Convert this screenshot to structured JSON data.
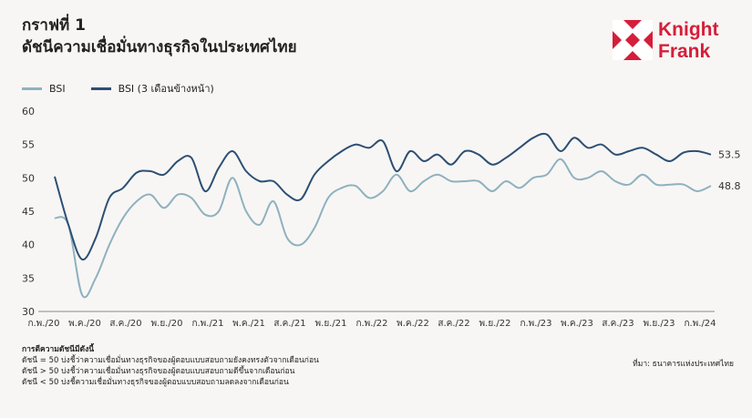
{
  "header": {
    "label": "กราฟที่ 1",
    "title": "ดัชนีความเชื่อมั่นทางธุรกิจในประเทศไทย"
  },
  "logo": {
    "line1": "Knight",
    "line2": "Frank",
    "color": "#d41e3a"
  },
  "legend": [
    {
      "name": "BSI",
      "color": "#8fb1bf"
    },
    {
      "name": "BSI (3 เดือนข้างหน้า)",
      "color": "#2d4f74"
    }
  ],
  "chart_data": {
    "type": "line",
    "ylim": [
      30,
      60
    ],
    "yticks": [
      30,
      35,
      40,
      45,
      50,
      55,
      60
    ],
    "xtick_labels": [
      "ก.พ./20",
      "พ.ค./20",
      "ส.ค./20",
      "พ.ย./20",
      "ก.พ./21",
      "พ.ค./21",
      "ส.ค./21",
      "พ.ย./21",
      "ก.พ./22",
      "พ.ค./22",
      "ส.ค./22",
      "พ.ย./22",
      "ก.พ./23",
      "พ.ค./23",
      "ส.ค./23",
      "พ.ย./23",
      "ก.พ./24"
    ],
    "series": [
      {
        "name": "BSI",
        "color": "#8fb1bf",
        "values": [
          44.0,
          43.0,
          32.5,
          35.0,
          40.0,
          44.0,
          46.5,
          47.5,
          45.5,
          47.5,
          47.0,
          44.5,
          45.0,
          50.0,
          45.0,
          43.0,
          46.5,
          41.0,
          40.0,
          42.5,
          47.0,
          48.5,
          48.8,
          47.0,
          48.0,
          50.5,
          48.0,
          49.5,
          50.5,
          49.5,
          49.5,
          49.5,
          48.0,
          49.5,
          48.5,
          50.0,
          50.5,
          52.8,
          50.0,
          50.0,
          51.0,
          49.5,
          49.0,
          50.5,
          49.0,
          49.0,
          49.0,
          48.0,
          48.8
        ],
        "end_label": "48.8"
      },
      {
        "name": "BSI (3 เดือนข้างหน้า)",
        "color": "#2d4f74",
        "values": [
          50.2,
          43.0,
          37.8,
          41.0,
          47.0,
          48.5,
          50.8,
          51.0,
          50.5,
          52.5,
          53.0,
          48.0,
          51.5,
          54.0,
          51.0,
          49.5,
          49.5,
          47.5,
          46.8,
          50.5,
          52.5,
          54.0,
          55.0,
          54.5,
          55.5,
          51.0,
          54.0,
          52.5,
          53.5,
          52.0,
          54.0,
          53.5,
          52.0,
          53.0,
          54.5,
          56.0,
          56.5,
          54.0,
          56.0,
          54.5,
          55.0,
          53.5,
          54.0,
          54.5,
          53.5,
          52.5,
          53.8,
          54.0,
          53.5
        ],
        "end_label": "53.5"
      }
    ]
  },
  "notes": {
    "title": "การตีความดัชนีมีดังนี้",
    "lines": [
      "ดัชนี = 50 บ่งชี้ว่าความเชื่อมั่นทางธุรกิจของผู้ตอบแบบสอบถามยังคงทรงตัวจากเดือนก่อน",
      "ดัชนี > 50 บ่งชี้ว่าความเชื่อมั่นทางธุรกิจของผู้ตอบแบบสอบถามดีขึ้นจากเดือนก่อน",
      "ดัชนี < 50 บ่งชี้ความเชื่อมั่นทางธุรกิจของผู้ตอบแบบสอบถามลดลงจากเดือนก่อน"
    ]
  },
  "source": "ที่มา: ธนาคารแห่งประเทศไทย"
}
